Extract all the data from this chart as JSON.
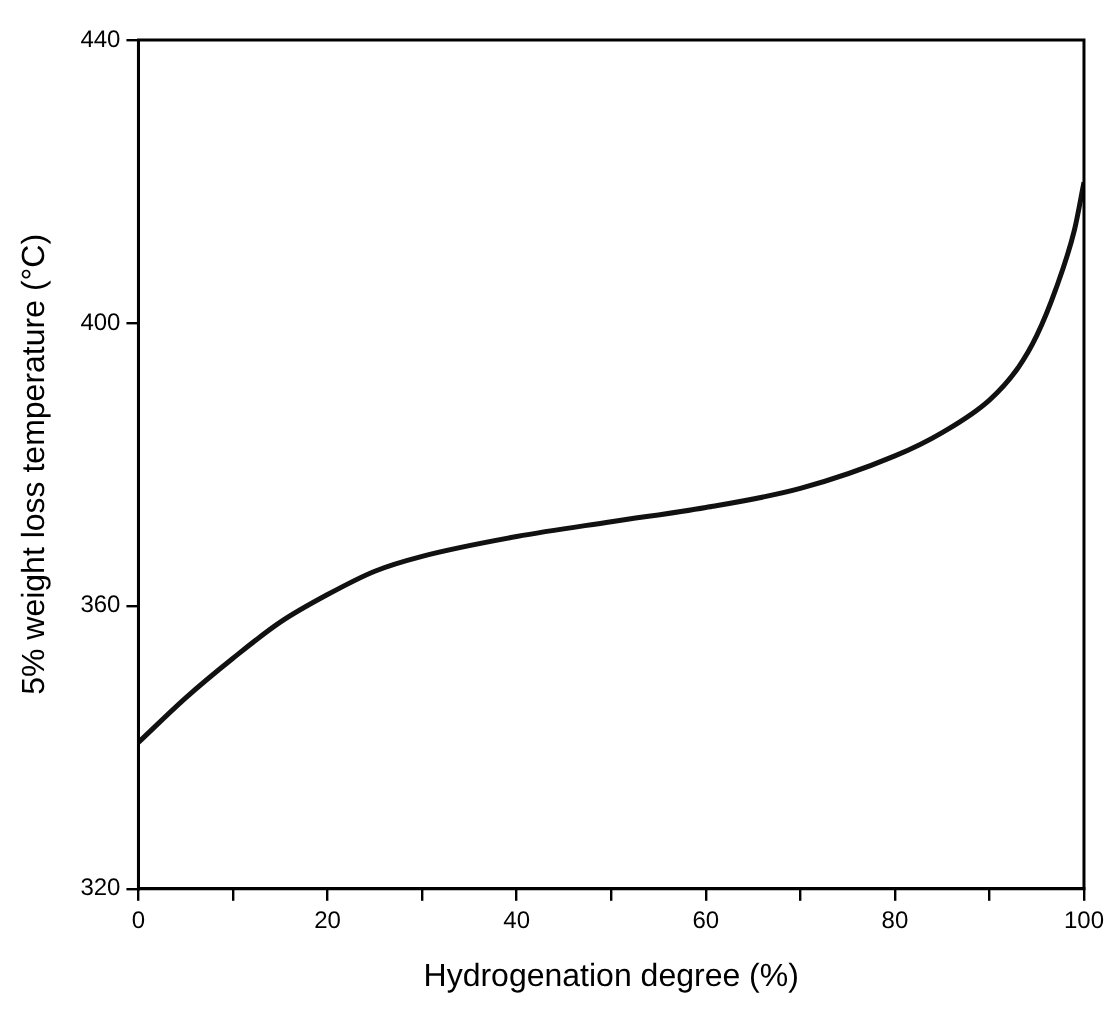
{
  "chart_data": {
    "type": "line",
    "xlabel": "Hydrogenation degree (%)",
    "ylabel": "5% weight loss temperature (°C)",
    "x": [
      0,
      5,
      10,
      15,
      20,
      25,
      30,
      40,
      50,
      60,
      70,
      80,
      85,
      90,
      93,
      95,
      97,
      99,
      100
    ],
    "series": [
      {
        "color": "#111111",
        "values": [
          340.7,
          347.0,
          352.6,
          357.7,
          361.6,
          364.9,
          367.0,
          369.8,
          371.9,
          373.9,
          376.6,
          381.2,
          384.5,
          389.1,
          393.6,
          398.2,
          404.7,
          413.2,
          419.9
        ]
      }
    ],
    "xlim": [
      0,
      100
    ],
    "xticks": [
      0,
      {
        "value": 10,
        "label": null
      },
      20,
      {
        "value": 30,
        "label": null
      },
      40,
      {
        "value": 50,
        "label": null
      },
      60,
      {
        "value": 70,
        "label": null
      },
      80,
      {
        "value": 90,
        "label": null
      },
      100
    ],
    "ylim": [
      320,
      440
    ],
    "yticks": [
      320,
      360,
      400,
      440
    ],
    "grid": false,
    "legend": false,
    "marker": "none",
    "line_style": "solid"
  }
}
